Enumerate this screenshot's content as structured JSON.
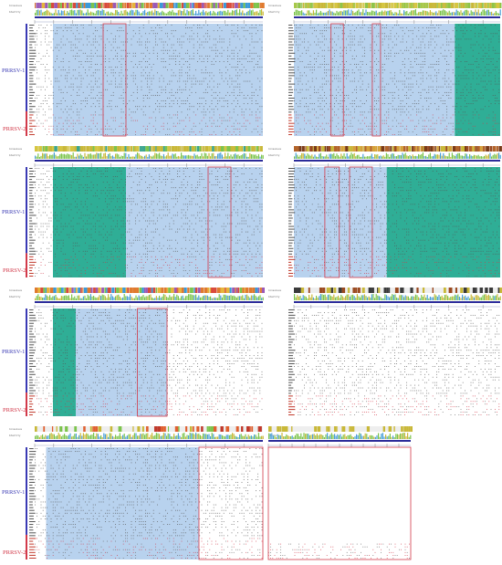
{
  "group_labels": {
    "type1": "PRRSV-1",
    "type2": "PRRSV-2"
  },
  "tracks": {
    "consensus": "Consensus",
    "identity": "Identity"
  },
  "colors": {
    "conserved_teal": "#2fae96",
    "variable_blue": "#b8d2ee",
    "frame_red": "#d23a4a",
    "prrsv1_blue": "#3a3ab4",
    "coverage_navy": "#2c2c9a"
  },
  "panels": [
    {
      "id": "p1",
      "palette": "colorful"
    },
    {
      "id": "p2",
      "palette": "olive"
    },
    {
      "id": "p3",
      "palette": "teal-olive"
    },
    {
      "id": "p4",
      "palette": "brown"
    },
    {
      "id": "p5",
      "palette": "colorful"
    },
    {
      "id": "p6",
      "palette": "brown-sparse"
    },
    {
      "id": "p7",
      "palette": "red-sparse"
    },
    {
      "id": "p8",
      "palette": "olive-empty"
    }
  ]
}
